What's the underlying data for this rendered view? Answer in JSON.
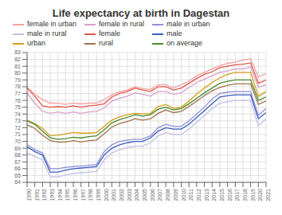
{
  "chart_data": {
    "type": "line",
    "title": "Life expectancy at birth in Dagestan",
    "x": [
      1990,
      1991,
      1992,
      1993,
      1994,
      1995,
      1996,
      1997,
      1998,
      1999,
      2000,
      2001,
      2002,
      2003,
      2004,
      2005,
      2006,
      2007,
      2008,
      2009,
      2010,
      2011,
      2012,
      2013,
      2014,
      2015,
      2016,
      2017,
      2018,
      2019,
      2020,
      2021
    ],
    "xlim": [
      1990,
      2021
    ],
    "xticks": [
      1990,
      1991,
      1992,
      1993,
      1994,
      1995,
      1996,
      1997,
      1998,
      1999,
      2000,
      2001,
      2002,
      2003,
      2004,
      2005,
      2006,
      2007,
      2008,
      2009,
      2010,
      2011,
      2012,
      2013,
      2014,
      2015,
      2016,
      2017,
      2018,
      2019,
      2020,
      2021
    ],
    "ylim": [
      64,
      83
    ],
    "yticks": [
      64,
      65,
      66,
      67,
      68,
      69,
      70,
      71,
      72,
      73,
      74,
      75,
      76,
      77,
      78,
      79,
      80,
      81,
      82,
      83
    ],
    "grid": true,
    "legend": "upper left",
    "series": [
      {
        "name": "female in urban",
        "color": "#f5a0a0",
        "values": [
          77.9,
          76.9,
          76.1,
          75.6,
          75.6,
          75.4,
          75.6,
          75.5,
          75.6,
          75.6,
          76.1,
          76.8,
          77.3,
          77.5,
          78.0,
          77.7,
          77.6,
          78.3,
          78.3,
          77.8,
          78.3,
          78.8,
          79.6,
          80.1,
          80.6,
          81.1,
          81.4,
          81.6,
          81.9,
          82.1,
          79.4,
          79.9
        ]
      },
      {
        "name": "female in rural",
        "color": "#d8a0c8",
        "values": [
          77.1,
          75.6,
          74.4,
          74.1,
          74.3,
          74.1,
          74.3,
          74.1,
          74.3,
          74.4,
          74.9,
          75.9,
          76.3,
          76.6,
          77.1,
          76.9,
          76.6,
          77.3,
          77.3,
          76.9,
          77.1,
          77.9,
          78.6,
          79.1,
          79.6,
          80.1,
          80.3,
          80.6,
          80.6,
          80.9,
          77.9,
          78.3
        ]
      },
      {
        "name": "male in urban",
        "color": "#9090d8",
        "values": [
          69.5,
          68.8,
          68.3,
          66.0,
          66.0,
          66.2,
          66.3,
          66.4,
          66.5,
          66.6,
          68.5,
          69.5,
          70.0,
          70.2,
          70.3,
          70.3,
          70.8,
          72.0,
          72.5,
          72.2,
          72.2,
          73.0,
          74.0,
          75.0,
          76.2,
          77.0,
          77.2,
          77.3,
          77.3,
          77.3,
          73.8,
          74.8
        ]
      },
      {
        "name": "male in rural",
        "color": "#c0c0e8",
        "values": [
          68.3,
          67.8,
          67.3,
          64.8,
          64.8,
          65.1,
          65.3,
          65.4,
          65.5,
          65.6,
          67.3,
          68.3,
          68.8,
          69.1,
          69.3,
          69.3,
          69.8,
          70.8,
          71.3,
          71.0,
          71.0,
          71.8,
          72.8,
          73.8,
          74.8,
          75.6,
          75.8,
          76.0,
          76.0,
          76.0,
          72.3,
          73.3
        ]
      },
      {
        "name": "female",
        "color": "#e8534a",
        "values": [
          77.8,
          76.6,
          75.2,
          75.0,
          75.1,
          75.0,
          75.2,
          75.0,
          75.2,
          75.3,
          75.5,
          76.5,
          77.0,
          77.3,
          77.8,
          77.5,
          77.3,
          78.0,
          78.0,
          77.5,
          77.8,
          78.5,
          79.2,
          79.8,
          80.2,
          80.8,
          81.0,
          81.2,
          81.3,
          81.5,
          78.5,
          79.0
        ]
      },
      {
        "name": "male",
        "color": "#3b5fc0",
        "values": [
          69.2,
          68.5,
          68.0,
          65.5,
          65.5,
          65.8,
          66.0,
          66.1,
          66.2,
          66.3,
          68.0,
          69.0,
          69.5,
          69.8,
          70.0,
          70.0,
          70.5,
          71.5,
          72.0,
          71.8,
          71.8,
          72.5,
          73.5,
          74.5,
          75.5,
          76.5,
          76.7,
          76.8,
          76.8,
          76.8,
          73.3,
          74.2
        ]
      },
      {
        "name": "urban",
        "color": "#d4a017",
        "values": [
          73.1,
          72.6,
          71.9,
          70.8,
          70.9,
          71.1,
          71.3,
          71.2,
          71.2,
          71.3,
          72.2,
          73.1,
          73.6,
          73.9,
          74.1,
          74.0,
          74.1,
          75.1,
          75.4,
          74.8,
          75.0,
          75.9,
          76.9,
          77.8,
          78.6,
          79.3,
          79.8,
          80.1,
          80.1,
          80.1,
          76.6,
          77.3
        ]
      },
      {
        "name": "rural",
        "color": "#a0704a",
        "values": [
          72.4,
          71.9,
          70.9,
          70.1,
          69.9,
          69.9,
          70.1,
          69.9,
          70.1,
          70.2,
          71.1,
          72.1,
          72.6,
          72.9,
          73.3,
          73.1,
          73.3,
          74.1,
          74.6,
          74.2,
          74.4,
          75.1,
          75.9,
          76.7,
          77.4,
          77.9,
          78.2,
          78.4,
          78.4,
          78.4,
          75.4,
          75.9
        ]
      },
      {
        "name": "on average",
        "color": "#4a8c2a",
        "values": [
          73.0,
          72.5,
          71.5,
          70.5,
          70.3,
          70.4,
          70.6,
          70.5,
          70.7,
          70.8,
          71.7,
          72.7,
          73.2,
          73.5,
          73.9,
          73.7,
          73.9,
          74.7,
          75.0,
          74.6,
          74.8,
          75.5,
          76.3,
          77.1,
          77.8,
          78.5,
          78.8,
          79.0,
          79.0,
          79.0,
          76.0,
          76.5
        ]
      }
    ]
  }
}
